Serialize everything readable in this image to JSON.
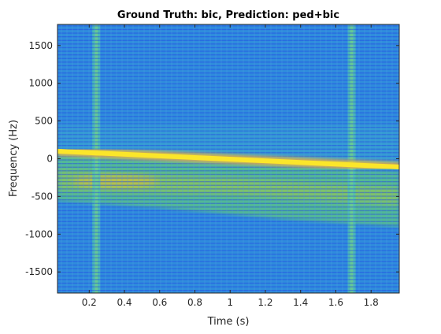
{
  "chart_data": {
    "type": "heatmap",
    "title": "Ground Truth: bic, Prediction: ped+bic",
    "xlabel": "Time (s)",
    "ylabel": "Frequency (Hz)",
    "xlim": [
      0.02,
      1.96
    ],
    "ylim": [
      -1780,
      1780
    ],
    "xticks": [
      0.2,
      0.4,
      0.6,
      0.8,
      1,
      1.2,
      1.4,
      1.6,
      1.8
    ],
    "xtick_labels": [
      "0.2",
      "0.4",
      "0.6",
      "0.8",
      "1",
      "1.2",
      "1.4",
      "1.6",
      "1.8"
    ],
    "yticks": [
      1500,
      1000,
      500,
      0,
      -500,
      -1000,
      -1500
    ],
    "ytick_labels": [
      "1500",
      "1000",
      "500",
      "0",
      "-500",
      "-1000",
      "-1500"
    ],
    "colormap": "parula",
    "grid": false,
    "legend": "none",
    "features": {
      "main_band": {
        "t_start": 0.02,
        "f_start": 100,
        "t_end": 1.96,
        "f_end": -110
      },
      "broadband_bursts_s": [
        0.24,
        1.69
      ],
      "energy_region_lower_edge": {
        "t_start": 0.02,
        "f_start": -560,
        "t_end": 1.96,
        "f_end": -900
      }
    }
  }
}
